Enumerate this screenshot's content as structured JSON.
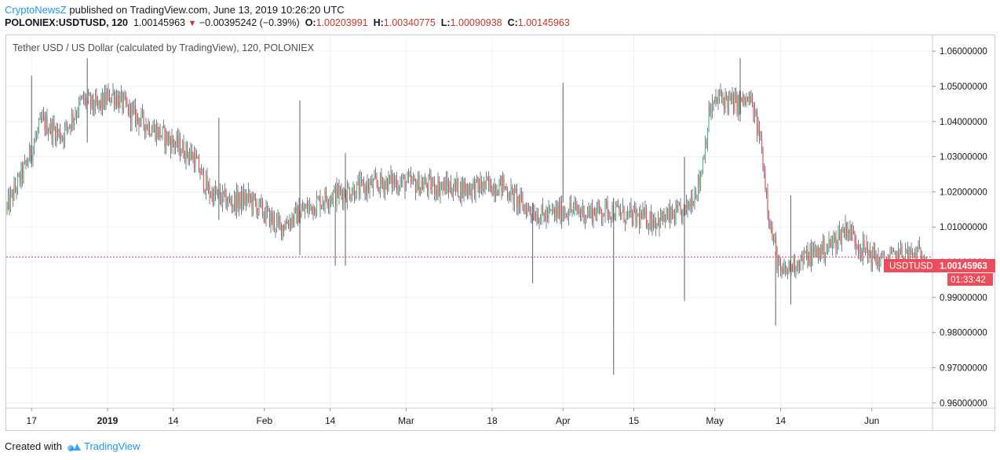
{
  "header": {
    "author": "CryptoNewsZ",
    "published_text": "published on TradingView.com, June 13, 2019 10:26:20 UTC",
    "symbol": "POLONIEX:USDTUSD, 120",
    "last": "1.00145963",
    "change": "−0.00395242 (−0.39%)",
    "open_label": "O:",
    "open": "1.00203991",
    "high_label": "H:",
    "high": "1.00340775",
    "low_label": "L:",
    "low": "1.00090938",
    "close_label": "C:",
    "close": "1.00145963"
  },
  "legend": {
    "title": "Tether USD / US Dollar (calculated by TradingView), 120, POLONIEX"
  },
  "price_label": {
    "symbol": "USDTUSD",
    "price": "1.00145963",
    "countdown": "01:33:42"
  },
  "footer": {
    "created_with": "Created with",
    "brand": "TradingView"
  },
  "colors": {
    "up": "#53b987",
    "down": "#eb4d5c",
    "wick": "#5d606b",
    "accent": "#2196f3",
    "price_label_bg": "#eb4d5c"
  },
  "chart_data": {
    "type": "candlestick",
    "title": "Tether USD / US Dollar (calculated by TradingView), 120, POLONIEX",
    "y_ticks": [
      1.06,
      1.05,
      1.04,
      1.03,
      1.02,
      1.01,
      1.0,
      0.99,
      0.98,
      0.97,
      0.96
    ],
    "y_tick_labels": [
      "1.06000000",
      "1.05000000",
      "1.04000000",
      "1.03000000",
      "1.02000000",
      "1.01000000",
      "1.00000000",
      "0.99000000",
      "0.98000000",
      "0.97000000",
      "0.96000000"
    ],
    "ylim": [
      0.9585,
      1.0645
    ],
    "x_ticks": [
      "17",
      "2019",
      "14",
      "Feb",
      "14",
      "Mar",
      "18",
      "Apr",
      "15",
      "May",
      "14",
      "Jun"
    ],
    "x_tick_dates": [
      "2018-12-17",
      "2019-01-01",
      "2019-01-14",
      "2019-02-01",
      "2019-02-14",
      "2019-03-01",
      "2019-03-18",
      "2019-04-01",
      "2019-04-15",
      "2019-05-01",
      "2019-05-14",
      "2019-06-01"
    ],
    "x_range": [
      "2018-12-12",
      "2019-06-13"
    ],
    "current_price": 1.00145963,
    "grid": true,
    "trend": [
      [
        "2018-12-12",
        1.015
      ],
      [
        "2018-12-16",
        1.028
      ],
      [
        "2018-12-19",
        1.04
      ],
      [
        "2018-12-23",
        1.036
      ],
      [
        "2018-12-27",
        1.046
      ],
      [
        "2018-12-30",
        1.044
      ],
      [
        "2019-01-02",
        1.048
      ],
      [
        "2019-01-06",
        1.042
      ],
      [
        "2019-01-10",
        1.038
      ],
      [
        "2019-01-14",
        1.034
      ],
      [
        "2019-01-18",
        1.03
      ],
      [
        "2019-01-21",
        1.02
      ],
      [
        "2019-01-25",
        1.017
      ],
      [
        "2019-01-29",
        1.018
      ],
      [
        "2019-02-04",
        1.01
      ],
      [
        "2019-02-08",
        1.014
      ],
      [
        "2019-02-14",
        1.019
      ],
      [
        "2019-02-20",
        1.021
      ],
      [
        "2019-02-26",
        1.023
      ],
      [
        "2019-03-04",
        1.022
      ],
      [
        "2019-03-12",
        1.021
      ],
      [
        "2019-03-20",
        1.022
      ],
      [
        "2019-03-24",
        1.016
      ],
      [
        "2019-03-28",
        1.013
      ],
      [
        "2019-04-02",
        1.015
      ],
      [
        "2019-04-06",
        1.014
      ],
      [
        "2019-04-10",
        1.015
      ],
      [
        "2019-04-14",
        1.013
      ],
      [
        "2019-04-20",
        1.012
      ],
      [
        "2019-04-25",
        1.014
      ],
      [
        "2019-04-28",
        1.023
      ],
      [
        "2019-04-30",
        1.043
      ],
      [
        "2019-05-02",
        1.047
      ],
      [
        "2019-05-05",
        1.045
      ],
      [
        "2019-05-08",
        1.046
      ],
      [
        "2019-05-10",
        1.035
      ],
      [
        "2019-05-12",
        1.01
      ],
      [
        "2019-05-14",
        0.996
      ],
      [
        "2019-05-17",
        1.0
      ],
      [
        "2019-05-20",
        1.002
      ],
      [
        "2019-05-24",
        1.005
      ],
      [
        "2019-05-27",
        1.01
      ],
      [
        "2019-05-30",
        1.004
      ],
      [
        "2019-06-03",
        1.0
      ],
      [
        "2019-06-07",
        1.002
      ],
      [
        "2019-06-13",
        1.002
      ]
    ],
    "spikes": [
      {
        "date": "2018-12-17",
        "high": 1.053,
        "low": 1.027
      },
      {
        "date": "2018-12-28",
        "high": 1.058,
        "low": 1.034
      },
      {
        "date": "2019-01-23",
        "high": 1.041,
        "low": 1.012
      },
      {
        "date": "2019-02-08",
        "high": 1.046,
        "low": 1.002
      },
      {
        "date": "2019-02-15",
        "high": 1.016,
        "low": 0.999
      },
      {
        "date": "2019-02-17",
        "high": 1.031,
        "low": 0.999
      },
      {
        "date": "2019-03-26",
        "high": 1.017,
        "low": 0.994
      },
      {
        "date": "2019-04-01",
        "high": 1.051,
        "low": 1.017
      },
      {
        "date": "2019-04-11",
        "high": 1.018,
        "low": 0.968
      },
      {
        "date": "2019-04-25",
        "high": 1.03,
        "low": 0.989
      },
      {
        "date": "2019-05-06",
        "high": 1.058,
        "low": 1.04
      },
      {
        "date": "2019-05-13",
        "high": 1.003,
        "low": 0.982
      },
      {
        "date": "2019-05-16",
        "high": 1.019,
        "low": 0.988
      }
    ]
  }
}
